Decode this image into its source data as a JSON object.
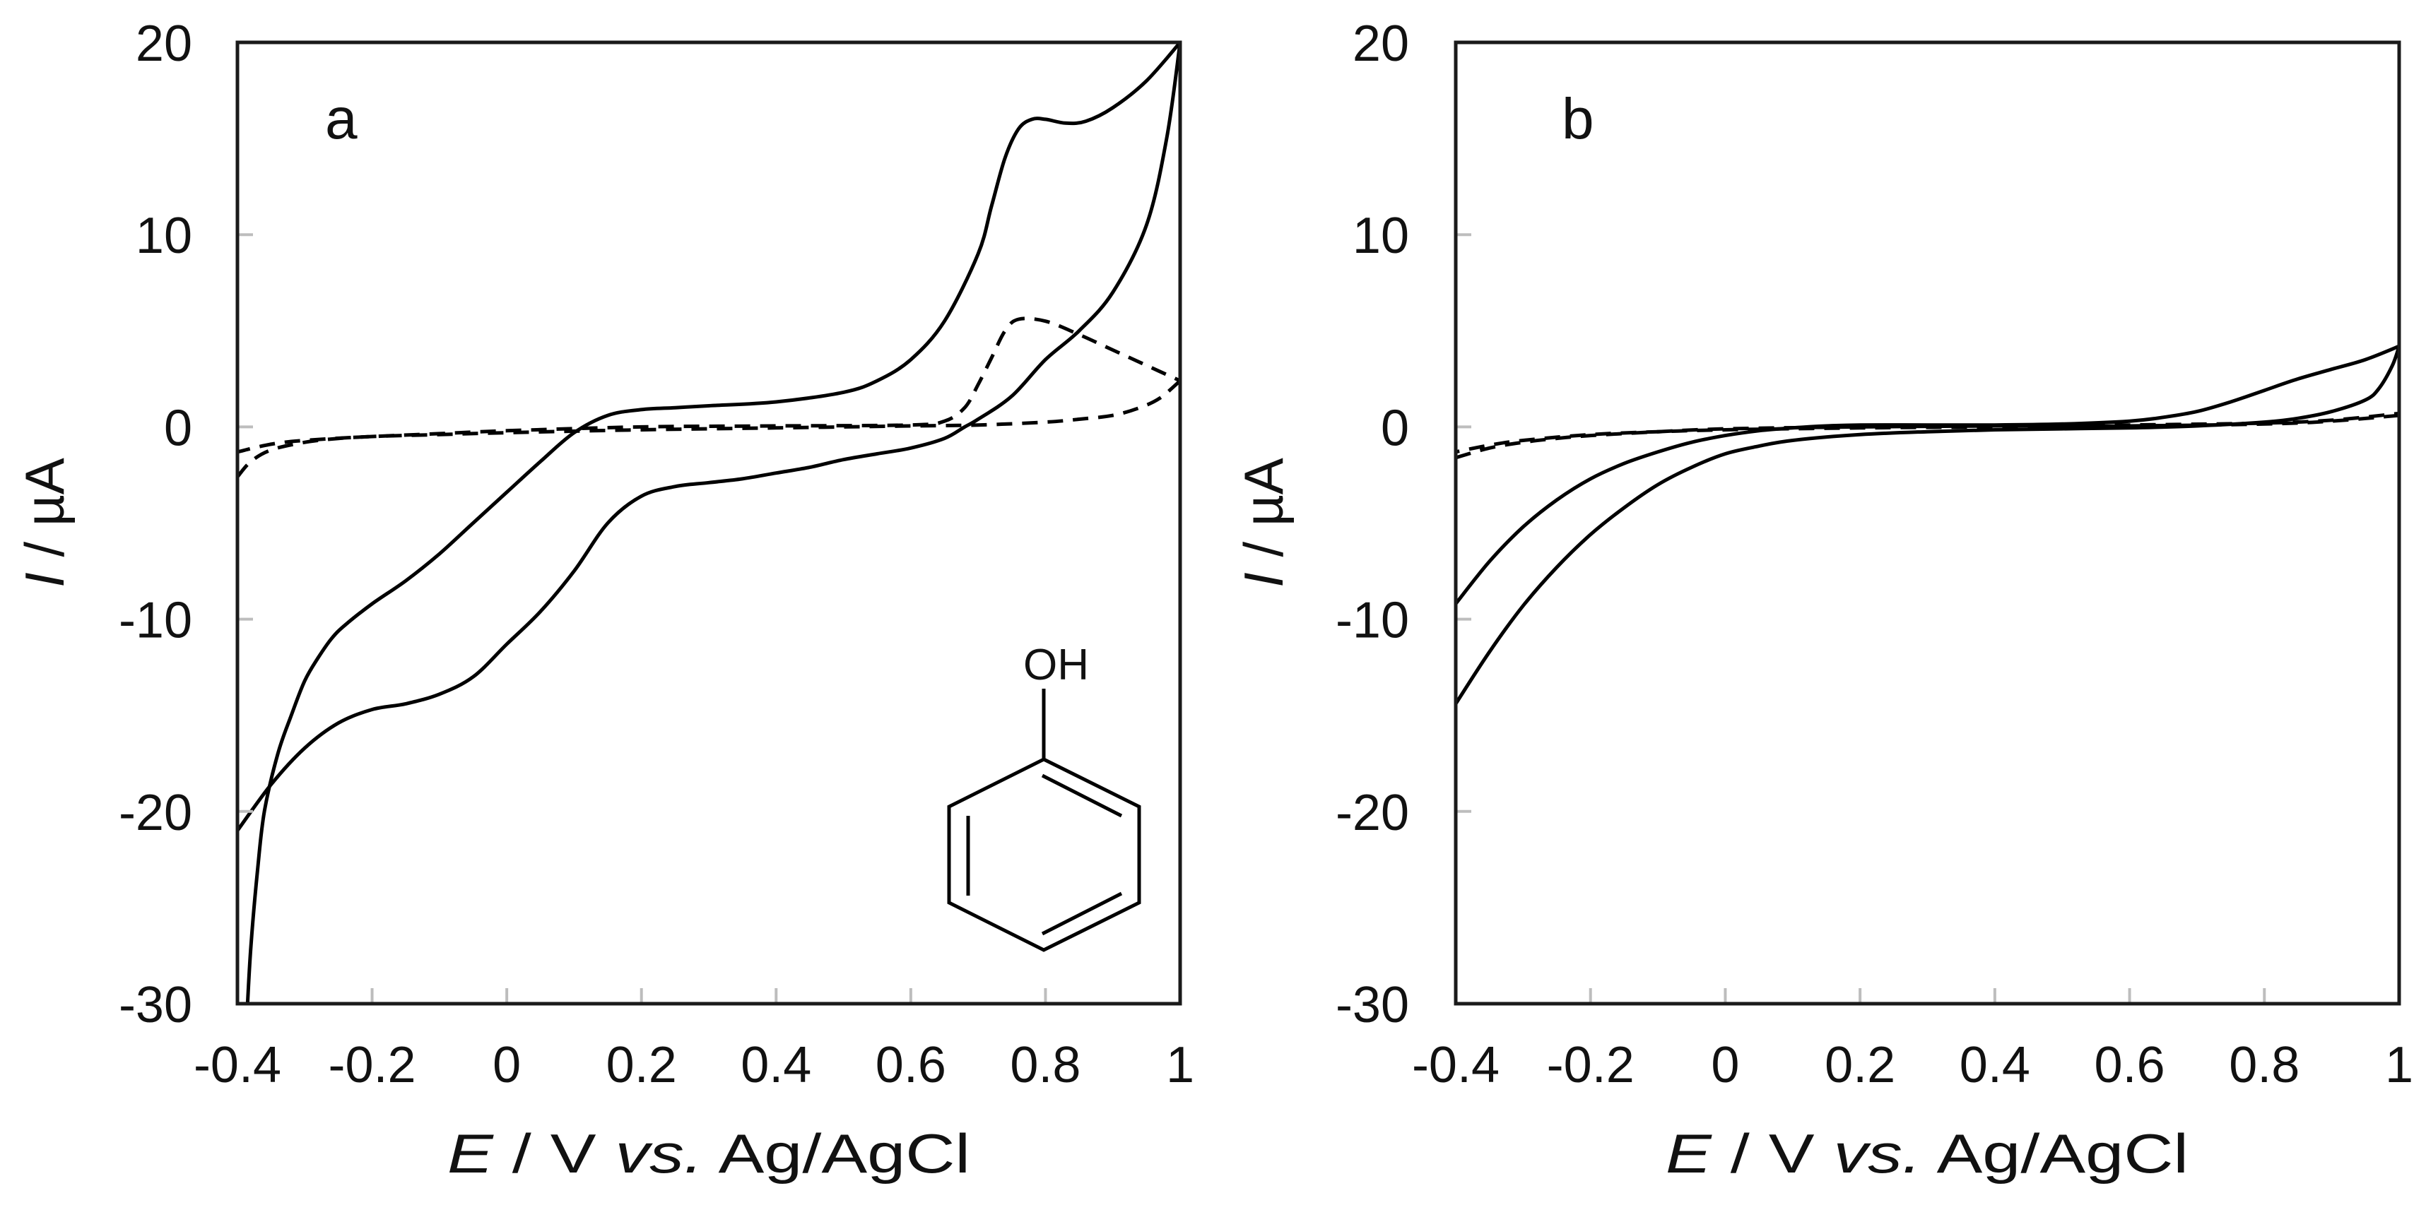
{
  "figure": {
    "panels": [
      {
        "id": "a",
        "letter": "a",
        "ylabel_italic": "I",
        "ylabel_rest": " / µA",
        "xlabel_italic_E": "E",
        "xlabel_mid": " / V ",
        "xlabel_italic_vs": "vs.",
        "xlabel_tail": " Ag/AgCl",
        "inset": {
          "molecule": "phenol",
          "label": "OH"
        }
      },
      {
        "id": "b",
        "letter": "b",
        "ylabel_italic": "I",
        "ylabel_rest": " / µA",
        "xlabel_italic_E": "E",
        "xlabel_mid": " / V ",
        "xlabel_italic_vs": "vs.",
        "xlabel_tail": " Ag/AgCl"
      }
    ]
  },
  "chart_data": [
    {
      "type": "line",
      "panel": "a",
      "title": "",
      "xlabel": "E / V vs. Ag/AgCl",
      "ylabel": "I / µA",
      "xlim": [
        -0.4,
        1.0
      ],
      "ylim": [
        -30,
        20
      ],
      "xticks": [
        -0.4,
        -0.2,
        0,
        0.2,
        0.4,
        0.6,
        0.8,
        1
      ],
      "xtick_labels": [
        "-0.4",
        "-0.2",
        "0",
        "0.2",
        "0.4",
        "0.6",
        "0.8",
        "1"
      ],
      "yticks": [
        20,
        10,
        0,
        -10,
        -20,
        -30
      ],
      "ytick_labels": [
        "20",
        "10",
        "0",
        "-10",
        "-20",
        "-30"
      ],
      "grid": false,
      "legend": null,
      "annotations": [
        "a",
        "phenol structure (OH)"
      ],
      "series": [
        {
          "name": "solid (with phenol) — forward/upper branch",
          "style": "solid",
          "x": [
            -0.385,
            -0.38,
            -0.37,
            -0.36,
            -0.34,
            -0.32,
            -0.3,
            -0.28,
            -0.26,
            -0.24,
            -0.2,
            -0.15,
            -0.1,
            -0.05,
            0,
            0.05,
            0.1,
            0.15,
            0.2,
            0.25,
            0.3,
            0.4,
            0.5,
            0.55,
            0.6,
            0.65,
            0.7,
            0.72,
            0.74,
            0.76,
            0.78,
            0.8,
            0.83,
            0.86,
            0.9,
            0.95,
            1.0
          ],
          "y": [
            -30,
            -27,
            -23,
            -20,
            -17,
            -15,
            -13.2,
            -12,
            -11,
            -10.3,
            -9.2,
            -8,
            -6.6,
            -5,
            -3.4,
            -1.8,
            -0.3,
            0.6,
            0.9,
            1.0,
            1.1,
            1.3,
            1.8,
            2.4,
            3.5,
            5.5,
            9,
            11.5,
            14,
            15.5,
            16,
            16,
            15.8,
            15.9,
            16.6,
            18,
            20
          ]
        },
        {
          "name": "solid (with phenol) — reverse/lower branch",
          "style": "solid",
          "x": [
            1.0,
            0.98,
            0.95,
            0.9,
            0.85,
            0.8,
            0.75,
            0.7,
            0.68,
            0.65,
            0.6,
            0.55,
            0.5,
            0.45,
            0.4,
            0.35,
            0.3,
            0.25,
            0.2,
            0.15,
            0.1,
            0.05,
            0,
            -0.05,
            -0.1,
            -0.15,
            -0.2,
            -0.25,
            -0.3,
            -0.35,
            -0.4
          ],
          "y": [
            20,
            15,
            10.5,
            7,
            5,
            3.5,
            1.6,
            0.4,
            0,
            -0.6,
            -1.1,
            -1.4,
            -1.7,
            -2.1,
            -2.4,
            -2.7,
            -2.9,
            -3.1,
            -3.6,
            -5,
            -7.5,
            -9.6,
            -11.3,
            -13,
            -13.9,
            -14.4,
            -14.7,
            -15.4,
            -16.7,
            -18.6,
            -21
          ]
        },
        {
          "name": "dashed (blank) — forward branch",
          "style": "dashed",
          "x": [
            -0.4,
            -0.38,
            -0.35,
            -0.3,
            -0.25,
            -0.2,
            -0.1,
            0,
            0.2,
            0.4,
            0.6,
            0.65,
            0.68,
            0.7,
            0.72,
            0.74,
            0.76,
            0.8,
            0.85,
            0.9,
            0.95,
            1.0
          ],
          "y": [
            -2.6,
            -1.8,
            -1.2,
            -0.8,
            -0.6,
            -0.5,
            -0.35,
            -0.2,
            0,
            0.05,
            0.1,
            0.3,
            1.0,
            2.2,
            3.6,
            5.0,
            5.6,
            5.5,
            4.8,
            4.0,
            3.2,
            2.4
          ]
        },
        {
          "name": "dashed (blank) — reverse branch",
          "style": "dashed",
          "x": [
            1.0,
            0.97,
            0.94,
            0.9,
            0.85,
            0.8,
            0.7,
            0.6,
            0.4,
            0.2,
            0,
            -0.1,
            -0.2,
            -0.3,
            -0.35,
            -0.4
          ],
          "y": [
            2.4,
            1.5,
            1.0,
            0.6,
            0.4,
            0.25,
            0.1,
            0.05,
            -0.05,
            -0.15,
            -0.3,
            -0.4,
            -0.5,
            -0.7,
            -0.9,
            -1.3
          ]
        }
      ]
    },
    {
      "type": "line",
      "panel": "b",
      "title": "",
      "xlabel": "E / V vs. Ag/AgCl",
      "ylabel": "I / µA",
      "xlim": [
        -0.4,
        1.0
      ],
      "ylim": [
        -30,
        20
      ],
      "xticks": [
        -0.4,
        -0.2,
        0,
        0.2,
        0.4,
        0.6,
        0.8,
        1
      ],
      "xtick_labels": [
        "-0.4",
        "-0.2",
        "0",
        "0.2",
        "0.4",
        "0.6",
        "0.8",
        "1"
      ],
      "yticks": [
        20,
        10,
        0,
        -10,
        -20,
        -30
      ],
      "ytick_labels": [
        "20",
        "10",
        "0",
        "-10",
        "-20",
        "-30"
      ],
      "grid": false,
      "legend": null,
      "annotations": [
        "b"
      ],
      "series": [
        {
          "name": "solid — forward/upper branch",
          "style": "solid",
          "x": [
            -0.4,
            -0.35,
            -0.3,
            -0.25,
            -0.2,
            -0.15,
            -0.1,
            -0.05,
            0,
            0.05,
            0.1,
            0.15,
            0.2,
            0.3,
            0.4,
            0.5,
            0.6,
            0.65,
            0.7,
            0.75,
            0.8,
            0.85,
            0.9,
            0.95,
            1.0
          ],
          "y": [
            -9.2,
            -7.0,
            -5.2,
            -3.8,
            -2.7,
            -1.9,
            -1.3,
            -0.8,
            -0.45,
            -0.2,
            -0.05,
            0.05,
            0.1,
            0.1,
            0.1,
            0.15,
            0.3,
            0.5,
            0.8,
            1.3,
            1.9,
            2.5,
            3.0,
            3.5,
            4.2
          ]
        },
        {
          "name": "solid — reverse/lower branch",
          "style": "solid",
          "x": [
            1.0,
            0.99,
            0.97,
            0.95,
            0.9,
            0.85,
            0.8,
            0.7,
            0.6,
            0.5,
            0.4,
            0.3,
            0.2,
            0.1,
            0.05,
            0,
            -0.05,
            -0.1,
            -0.15,
            -0.2,
            -0.25,
            -0.3,
            -0.35,
            -0.4
          ],
          "y": [
            4.2,
            3.2,
            2.0,
            1.4,
            0.8,
            0.45,
            0.25,
            0.05,
            -0.05,
            -0.1,
            -0.15,
            -0.25,
            -0.4,
            -0.7,
            -1.0,
            -1.4,
            -2.1,
            -3.0,
            -4.2,
            -5.6,
            -7.3,
            -9.3,
            -11.7,
            -14.4
          ]
        },
        {
          "name": "dashed (blank) — forward branch",
          "style": "dashed",
          "x": [
            -0.4,
            -0.35,
            -0.3,
            -0.25,
            -0.2,
            -0.1,
            0,
            0.2,
            0.4,
            0.6,
            0.8,
            0.9,
            1.0
          ],
          "y": [
            -1.6,
            -1.1,
            -0.8,
            -0.6,
            -0.45,
            -0.25,
            -0.1,
            0,
            0.05,
            0.1,
            0.2,
            0.35,
            0.7
          ]
        },
        {
          "name": "dashed (blank) — reverse branch",
          "style": "dashed",
          "x": [
            1.0,
            0.9,
            0.8,
            0.6,
            0.4,
            0.2,
            0,
            -0.1,
            -0.2,
            -0.3,
            -0.35,
            -0.4
          ],
          "y": [
            0.6,
            0.3,
            0.15,
            0.05,
            0,
            -0.05,
            -0.15,
            -0.25,
            -0.4,
            -0.7,
            -0.95,
            -1.3
          ]
        }
      ]
    }
  ]
}
